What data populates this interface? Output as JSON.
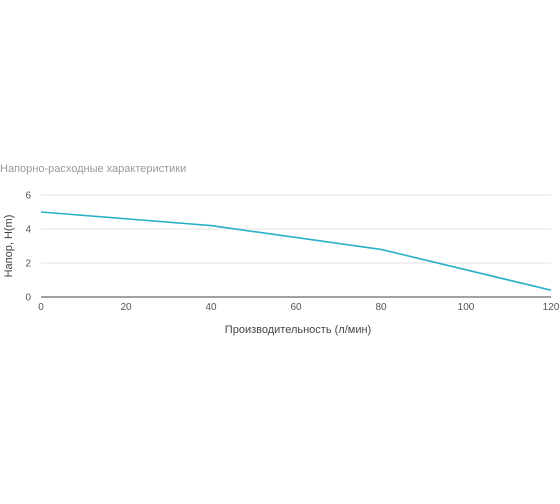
{
  "chart_data": {
    "type": "line",
    "title": "Напорно-расходные характеристики",
    "xlabel": "Производительность (л/мин)",
    "ylabel": "Напор, H(m)",
    "xlim": [
      0,
      120
    ],
    "ylim": [
      0,
      6
    ],
    "x_ticks": [
      0,
      20,
      40,
      60,
      80,
      100,
      120
    ],
    "y_ticks": [
      0,
      2,
      4,
      6
    ],
    "grid": true,
    "legend": "none",
    "series": [
      {
        "color": "#2ab0c6",
        "x": [
          0,
          40,
          80,
          120
        ],
        "y": [
          5.0,
          4.2,
          2.8,
          0.4
        ]
      }
    ]
  }
}
